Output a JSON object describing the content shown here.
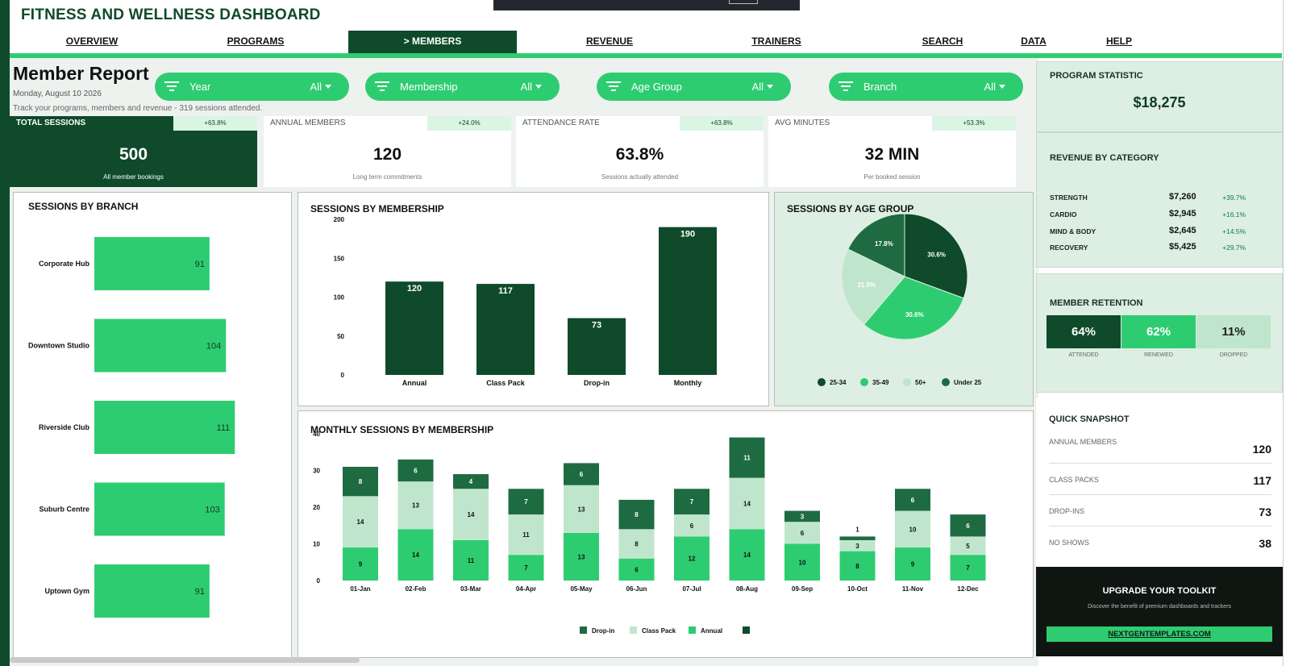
{
  "app": {
    "title": "FITNESS AND WELLNESS DASHBOARD"
  },
  "nav": [
    {
      "label": "OVERVIEW",
      "active": false
    },
    {
      "label": "PROGRAMS",
      "active": false
    },
    {
      "label": "> MEMBERS",
      "active": true
    },
    {
      "label": "REVENUE",
      "active": false
    },
    {
      "label": "TRAINERS",
      "active": false
    },
    {
      "label": "SEARCH",
      "active": false
    },
    {
      "label": "DATA",
      "active": false
    },
    {
      "label": "HELP",
      "active": false
    }
  ],
  "report": {
    "title": "Member Report",
    "date": "Monday, August 10 2026",
    "tagline": "Track your programs, members and revenue  -  319 sessions attended."
  },
  "filters": [
    {
      "label": "Year",
      "value": "All"
    },
    {
      "label": "Membership",
      "value": "All"
    },
    {
      "label": "Age Group",
      "value": "All"
    },
    {
      "label": "Branch",
      "value": "All"
    }
  ],
  "kpis": [
    {
      "label": "TOTAL SESSIONS",
      "delta": "+63.8%",
      "value": "500",
      "sub": "All member bookings"
    },
    {
      "label": "ANNUAL MEMBERS",
      "delta": "+24.0%",
      "value": "120",
      "sub": "Long term commitments"
    },
    {
      "label": "ATTENDANCE RATE",
      "delta": "+63.8%",
      "value": "63.8%",
      "sub": "Sessions actually attended"
    },
    {
      "label": "AVG MINUTES",
      "delta": "+53.3%",
      "value": "32 MIN",
      "sub": "Per booked session"
    }
  ],
  "colors": {
    "dark": "#0f4a2a",
    "green": "#2ecc71",
    "light": "#bfe6cc",
    "mid": "#1e6b41",
    "mint": "#dcefe2"
  },
  "chart_data": [
    {
      "type": "bar",
      "orientation": "horizontal",
      "title": "SESSIONS BY BRANCH",
      "categories": [
        "Corporate Hub",
        "Downtown Studio",
        "Riverside Club",
        "Suburb Centre",
        "Uptown Gym"
      ],
      "values": [
        91,
        104,
        111,
        103,
        91
      ]
    },
    {
      "type": "bar",
      "title": "SESSIONS BY MEMBERSHIP",
      "categories": [
        "Annual",
        "Class Pack",
        "Drop-in",
        "Monthly"
      ],
      "values": [
        120,
        117,
        73,
        190
      ],
      "ylim": [
        0,
        200
      ],
      "yticks": [
        "0",
        "50",
        "100",
        "150",
        "200"
      ]
    },
    {
      "type": "pie",
      "title": "SESSIONS BY AGE GROUP",
      "labels": [
        "25-34",
        "35-49",
        "50+",
        "Under 25"
      ],
      "values": [
        30.6,
        30.6,
        21.0,
        17.8
      ],
      "value_labels": [
        "30.6%",
        "30.6%",
        "21.0%",
        "17.8%"
      ],
      "legend": "bottom"
    },
    {
      "type": "bar",
      "stacked": true,
      "title": "MONTHLY SESSIONS BY MEMBERSHIP",
      "categories": [
        "01-Jan",
        "02-Feb",
        "03-Mar",
        "04-Apr",
        "05-May",
        "06-Jun",
        "07-Jul",
        "08-Aug",
        "09-Sep",
        "10-Oct",
        "11-Nov",
        "12-Dec"
      ],
      "series": [
        {
          "name": "Annual",
          "values": [
            9,
            14,
            11,
            7,
            13,
            6,
            12,
            14,
            10,
            8,
            9,
            7
          ]
        },
        {
          "name": "Class Pack",
          "values": [
            14,
            13,
            14,
            11,
            13,
            8,
            6,
            14,
            6,
            3,
            10,
            5
          ]
        },
        {
          "name": "Drop-in",
          "values": [
            8,
            6,
            4,
            7,
            6,
            8,
            7,
            11,
            3,
            1,
            6,
            6
          ]
        }
      ],
      "legend_names": [
        "Drop-in",
        "Class Pack",
        "Annual"
      ],
      "ylim": [
        0,
        40
      ],
      "yticks": [
        "0",
        "10",
        "20",
        "30",
        "40"
      ],
      "legend": "bottom"
    }
  ],
  "program_statistic": {
    "title": "PROGRAM STATISTIC",
    "value": "$18,275"
  },
  "revenue_by_category": {
    "title": "REVENUE BY CATEGORY",
    "rows": [
      {
        "name": "STRENGTH",
        "value": "$7,260",
        "delta": "+39.7%"
      },
      {
        "name": "CARDIO",
        "value": "$2,945",
        "delta": "+16.1%"
      },
      {
        "name": "MIND & BODY",
        "value": "$2,645",
        "delta": "+14.5%"
      },
      {
        "name": "RECOVERY",
        "value": "$5,425",
        "delta": "+29.7%"
      }
    ]
  },
  "retention": {
    "title": "MEMBER RETENTION",
    "items": [
      {
        "value": "64%",
        "label": "ATTENDED"
      },
      {
        "value": "62%",
        "label": "RENEWED"
      },
      {
        "value": "11%",
        "label": "DROPPED"
      }
    ]
  },
  "snapshot": {
    "title": "QUICK SNAPSHOT",
    "rows": [
      {
        "label": "ANNUAL MEMBERS",
        "value": "120"
      },
      {
        "label": "CLASS PACKS",
        "value": "117"
      },
      {
        "label": "DROP-INS",
        "value": "73"
      },
      {
        "label": "NO SHOWS",
        "value": "38"
      }
    ]
  },
  "promo": {
    "title": "UPGRADE YOUR TOOLKIT",
    "subtitle": "Discover the benefit of premium dashboards and trackers",
    "button": "NEXTGENTEMPLATES.COM"
  }
}
